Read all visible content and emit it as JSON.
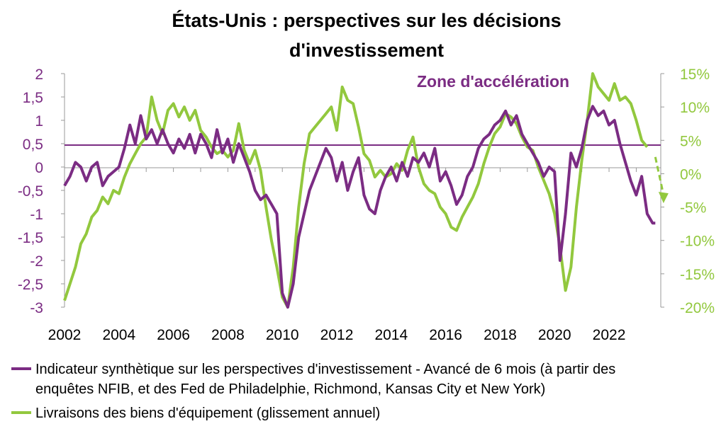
{
  "chart_data": {
    "type": "line",
    "title_line1": "États-Unis : perspectives sur les décisions",
    "title_line2": "d'investissement",
    "annotation": "Zone d'accélération",
    "threshold_left": 0.47,
    "x_ticks": [
      "2002",
      "2004",
      "2006",
      "2008",
      "2010",
      "2012",
      "2014",
      "2016",
      "2018",
      "2020",
      "2022"
    ],
    "xlim": [
      2002,
      2023.9
    ],
    "y_left": {
      "ylim": [
        -3,
        2
      ],
      "ticks": [
        "2",
        "1,5",
        "1",
        "0,5",
        "0",
        "-0,5",
        "-1",
        "-1,5",
        "-2",
        "-2,5",
        "-3"
      ],
      "color": "#7b2c83"
    },
    "y_right": {
      "ylim": [
        -20,
        15
      ],
      "ticks": [
        "15%",
        "10%",
        "5%",
        "0%",
        "-5%",
        "-10%",
        "-15%",
        "-20%"
      ],
      "color": "#92c83e"
    },
    "legend_line1": "Indicateur synthètique sur les perspectives d'investissement - Avancé de 6 mois (à partir des",
    "legend_line2": "enquêtes NFIB, et des Fed de Philadelphie, Richmond, Kansas City et New York)",
    "legend_line3": "Livraisons des biens d'équipement (glissement annuel)",
    "series": [
      {
        "name": "Indicateur synthètique sur les perspectives d'investissement - Avancé de 6 mois (à partir des enquêtes NFIB, et des Fed de Philadelphie, Richmond, Kansas City et New York)",
        "color": "#7b2c83",
        "axis": "left",
        "points": [
          [
            2002.0,
            -0.4
          ],
          [
            2002.2,
            -0.2
          ],
          [
            2002.4,
            0.1
          ],
          [
            2002.6,
            0.0
          ],
          [
            2002.8,
            -0.3
          ],
          [
            2003.0,
            0.0
          ],
          [
            2003.2,
            0.1
          ],
          [
            2003.4,
            -0.4
          ],
          [
            2003.6,
            -0.2
          ],
          [
            2003.8,
            -0.1
          ],
          [
            2004.0,
            0.0
          ],
          [
            2004.2,
            0.4
          ],
          [
            2004.4,
            0.9
          ],
          [
            2004.6,
            0.5
          ],
          [
            2004.8,
            1.1
          ],
          [
            2005.0,
            0.6
          ],
          [
            2005.2,
            0.8
          ],
          [
            2005.4,
            0.5
          ],
          [
            2005.6,
            0.8
          ],
          [
            2005.8,
            0.5
          ],
          [
            2006.0,
            0.3
          ],
          [
            2006.2,
            0.6
          ],
          [
            2006.4,
            0.4
          ],
          [
            2006.6,
            0.7
          ],
          [
            2006.8,
            0.3
          ],
          [
            2007.0,
            0.7
          ],
          [
            2007.2,
            0.5
          ],
          [
            2007.4,
            0.2
          ],
          [
            2007.6,
            0.8
          ],
          [
            2007.8,
            0.3
          ],
          [
            2008.0,
            0.6
          ],
          [
            2008.2,
            0.1
          ],
          [
            2008.4,
            0.5
          ],
          [
            2008.6,
            0.2
          ],
          [
            2008.8,
            -0.1
          ],
          [
            2009.0,
            -0.5
          ],
          [
            2009.2,
            -0.7
          ],
          [
            2009.4,
            -0.6
          ],
          [
            2009.6,
            -0.8
          ],
          [
            2009.8,
            -1.0
          ],
          [
            2010.0,
            -2.7
          ],
          [
            2010.2,
            -3.0
          ],
          [
            2010.4,
            -2.5
          ],
          [
            2010.6,
            -1.5
          ],
          [
            2010.8,
            -1.0
          ],
          [
            2011.0,
            -0.5
          ],
          [
            2011.2,
            -0.2
          ],
          [
            2011.4,
            0.1
          ],
          [
            2011.6,
            0.4
          ],
          [
            2011.8,
            0.2
          ],
          [
            2012.0,
            -0.3
          ],
          [
            2012.2,
            0.1
          ],
          [
            2012.4,
            -0.5
          ],
          [
            2012.6,
            -0.1
          ],
          [
            2012.8,
            0.2
          ],
          [
            2013.0,
            -0.6
          ],
          [
            2013.2,
            -0.9
          ],
          [
            2013.4,
            -1.0
          ],
          [
            2013.6,
            -0.5
          ],
          [
            2013.8,
            -0.2
          ],
          [
            2014.0,
            0.0
          ],
          [
            2014.2,
            -0.3
          ],
          [
            2014.4,
            0.1
          ],
          [
            2014.6,
            -0.2
          ],
          [
            2014.8,
            0.2
          ],
          [
            2015.0,
            0.1
          ],
          [
            2015.2,
            0.3
          ],
          [
            2015.4,
            0.0
          ],
          [
            2015.6,
            0.4
          ],
          [
            2015.8,
            -0.3
          ],
          [
            2016.0,
            -0.1
          ],
          [
            2016.2,
            -0.4
          ],
          [
            2016.4,
            -0.8
          ],
          [
            2016.6,
            -0.6
          ],
          [
            2016.8,
            -0.2
          ],
          [
            2017.0,
            0.0
          ],
          [
            2017.2,
            0.4
          ],
          [
            2017.4,
            0.6
          ],
          [
            2017.6,
            0.7
          ],
          [
            2017.8,
            0.9
          ],
          [
            2018.0,
            1.0
          ],
          [
            2018.2,
            1.2
          ],
          [
            2018.4,
            0.9
          ],
          [
            2018.6,
            1.1
          ],
          [
            2018.8,
            0.7
          ],
          [
            2019.0,
            0.5
          ],
          [
            2019.2,
            0.3
          ],
          [
            2019.4,
            0.1
          ],
          [
            2019.6,
            -0.2
          ],
          [
            2019.8,
            0.0
          ],
          [
            2020.0,
            -0.1
          ],
          [
            2020.2,
            -2.0
          ],
          [
            2020.4,
            -1.0
          ],
          [
            2020.6,
            0.3
          ],
          [
            2020.8,
            0.0
          ],
          [
            2021.0,
            0.4
          ],
          [
            2021.2,
            1.0
          ],
          [
            2021.4,
            1.3
          ],
          [
            2021.6,
            1.1
          ],
          [
            2021.8,
            1.2
          ],
          [
            2022.0,
            0.9
          ],
          [
            2022.2,
            1.0
          ],
          [
            2022.4,
            0.5
          ],
          [
            2022.6,
            0.1
          ],
          [
            2022.8,
            -0.3
          ],
          [
            2023.0,
            -0.6
          ],
          [
            2023.2,
            -0.2
          ],
          [
            2023.4,
            -1.0
          ],
          [
            2023.6,
            -1.2
          ],
          [
            2023.7,
            -1.2
          ]
        ]
      },
      {
        "name": "Livraisons des biens d'équipement (glissement annuel)",
        "color": "#92c83e",
        "axis": "right",
        "points": [
          [
            2002.0,
            -19.0
          ],
          [
            2002.2,
            -16.5
          ],
          [
            2002.4,
            -14.0
          ],
          [
            2002.6,
            -10.5
          ],
          [
            2002.8,
            -9.0
          ],
          [
            2003.0,
            -6.5
          ],
          [
            2003.2,
            -5.5
          ],
          [
            2003.4,
            -3.5
          ],
          [
            2003.6,
            -4.5
          ],
          [
            2003.8,
            -2.5
          ],
          [
            2004.0,
            -3.0
          ],
          [
            2004.2,
            -0.5
          ],
          [
            2004.4,
            1.5
          ],
          [
            2004.6,
            3.0
          ],
          [
            2004.8,
            4.5
          ],
          [
            2005.0,
            5.5
          ],
          [
            2005.2,
            11.5
          ],
          [
            2005.4,
            8.0
          ],
          [
            2005.6,
            6.0
          ],
          [
            2005.8,
            9.5
          ],
          [
            2006.0,
            10.5
          ],
          [
            2006.2,
            8.5
          ],
          [
            2006.4,
            10.0
          ],
          [
            2006.6,
            8.0
          ],
          [
            2006.8,
            9.5
          ],
          [
            2007.0,
            6.5
          ],
          [
            2007.2,
            5.5
          ],
          [
            2007.4,
            4.0
          ],
          [
            2007.6,
            3.0
          ],
          [
            2007.8,
            3.5
          ],
          [
            2008.0,
            2.5
          ],
          [
            2008.2,
            3.5
          ],
          [
            2008.4,
            7.5
          ],
          [
            2008.6,
            3.5
          ],
          [
            2008.8,
            1.5
          ],
          [
            2009.0,
            3.5
          ],
          [
            2009.2,
            0.5
          ],
          [
            2009.4,
            -5.0
          ],
          [
            2009.6,
            -10.0
          ],
          [
            2009.8,
            -14.0
          ],
          [
            2010.0,
            -18.5
          ],
          [
            2010.2,
            -20.0
          ],
          [
            2010.4,
            -14.0
          ],
          [
            2010.6,
            -5.0
          ],
          [
            2010.8,
            1.5
          ],
          [
            2011.0,
            6.0
          ],
          [
            2011.2,
            7.0
          ],
          [
            2011.4,
            8.0
          ],
          [
            2011.6,
            9.0
          ],
          [
            2011.8,
            10.0
          ],
          [
            2012.0,
            6.5
          ],
          [
            2012.2,
            13.0
          ],
          [
            2012.4,
            11.0
          ],
          [
            2012.6,
            10.5
          ],
          [
            2012.8,
            7.0
          ],
          [
            2013.0,
            3.0
          ],
          [
            2013.2,
            2.0
          ],
          [
            2013.4,
            -0.5
          ],
          [
            2013.6,
            0.5
          ],
          [
            2013.8,
            -0.5
          ],
          [
            2014.0,
            0.0
          ],
          [
            2014.2,
            1.5
          ],
          [
            2014.4,
            0.5
          ],
          [
            2014.6,
            3.5
          ],
          [
            2014.8,
            5.5
          ],
          [
            2015.0,
            1.0
          ],
          [
            2015.2,
            -1.5
          ],
          [
            2015.4,
            -2.5
          ],
          [
            2015.6,
            -3.0
          ],
          [
            2015.8,
            -5.0
          ],
          [
            2016.0,
            -6.0
          ],
          [
            2016.2,
            -8.0
          ],
          [
            2016.4,
            -8.5
          ],
          [
            2016.6,
            -6.5
          ],
          [
            2016.8,
            -5.0
          ],
          [
            2017.0,
            -3.5
          ],
          [
            2017.2,
            -1.5
          ],
          [
            2017.4,
            1.5
          ],
          [
            2017.6,
            4.0
          ],
          [
            2017.8,
            6.0
          ],
          [
            2018.0,
            7.0
          ],
          [
            2018.2,
            9.0
          ],
          [
            2018.4,
            8.5
          ],
          [
            2018.6,
            7.5
          ],
          [
            2018.8,
            5.5
          ],
          [
            2019.0,
            4.0
          ],
          [
            2019.2,
            3.5
          ],
          [
            2019.4,
            1.0
          ],
          [
            2019.6,
            -1.0
          ],
          [
            2019.8,
            -3.0
          ],
          [
            2020.0,
            -6.0
          ],
          [
            2020.2,
            -11.0
          ],
          [
            2020.4,
            -17.5
          ],
          [
            2020.6,
            -14.0
          ],
          [
            2020.8,
            -5.0
          ],
          [
            2021.0,
            2.0
          ],
          [
            2021.2,
            8.0
          ],
          [
            2021.4,
            15.0
          ],
          [
            2021.6,
            13.0
          ],
          [
            2021.8,
            12.0
          ],
          [
            2022.0,
            11.0
          ],
          [
            2022.2,
            13.5
          ],
          [
            2022.4,
            11.0
          ],
          [
            2022.6,
            11.5
          ],
          [
            2022.8,
            10.5
          ],
          [
            2023.0,
            8.0
          ],
          [
            2023.2,
            5.0
          ],
          [
            2023.4,
            4.0
          ]
        ]
      }
    ],
    "arrow": {
      "color": "#92c83e",
      "x_start": 2023.7,
      "y_start": 2.5,
      "x_end": 2024.0,
      "y_end": -4.0
    }
  }
}
